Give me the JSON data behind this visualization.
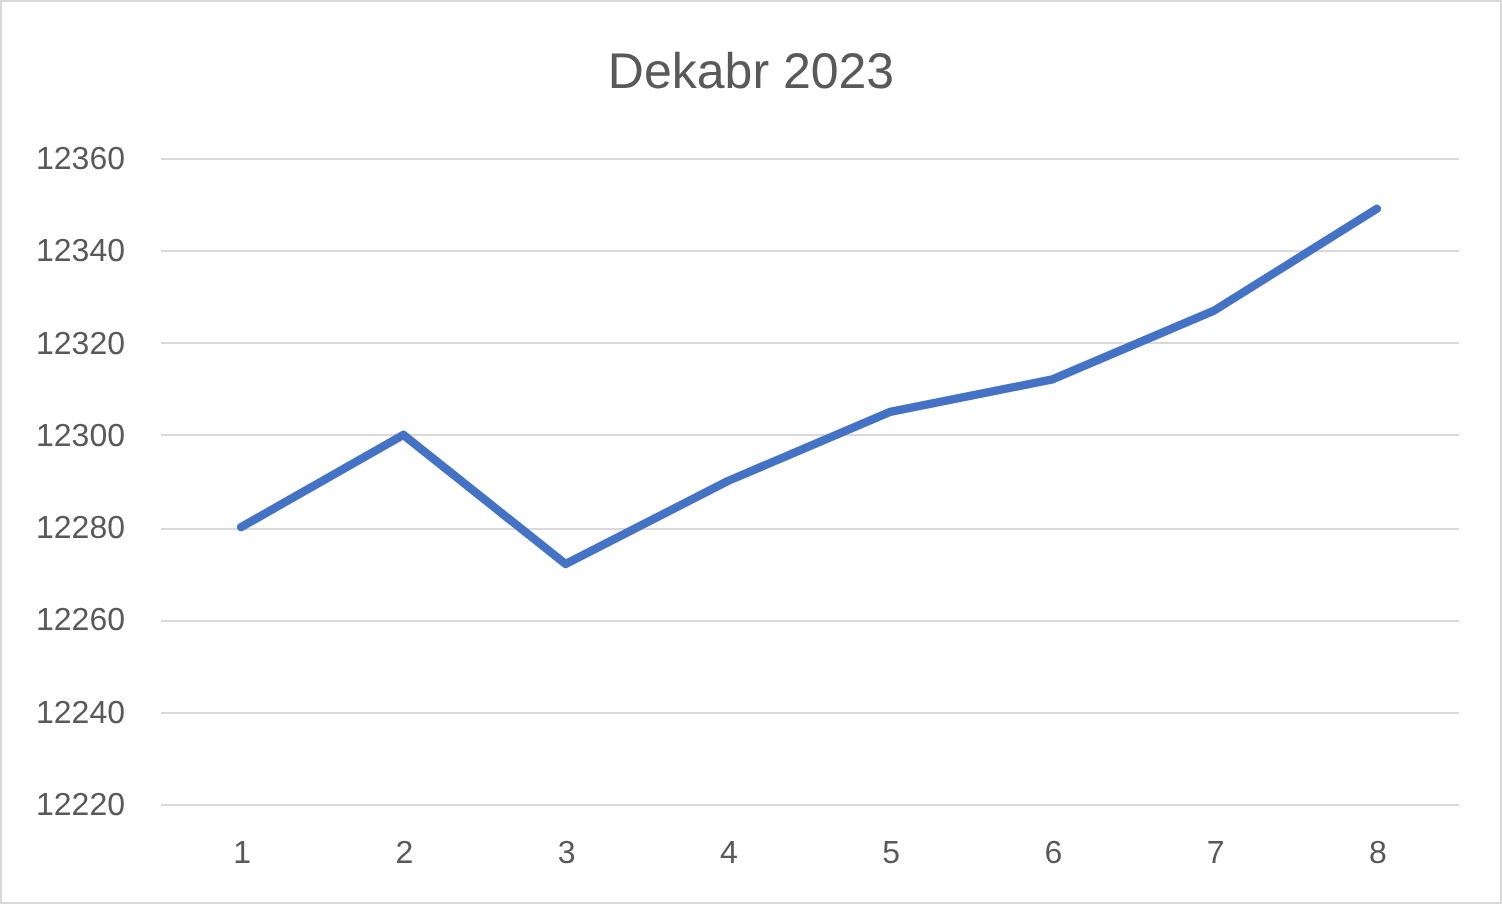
{
  "chart_data": {
    "type": "line",
    "title": "Dekabr 2023",
    "categories": [
      "1",
      "2",
      "3",
      "4",
      "5",
      "6",
      "7",
      "8"
    ],
    "series": [
      {
        "color": "#4472c4",
        "values": [
          12280,
          12300,
          12272,
          12290,
          12305,
          12312,
          12327,
          12349
        ]
      }
    ],
    "ylim": [
      12220,
      12360
    ],
    "yticks": [
      12220,
      12240,
      12260,
      12280,
      12300,
      12320,
      12340,
      12360
    ],
    "grid": "y",
    "line_style": "solid"
  }
}
